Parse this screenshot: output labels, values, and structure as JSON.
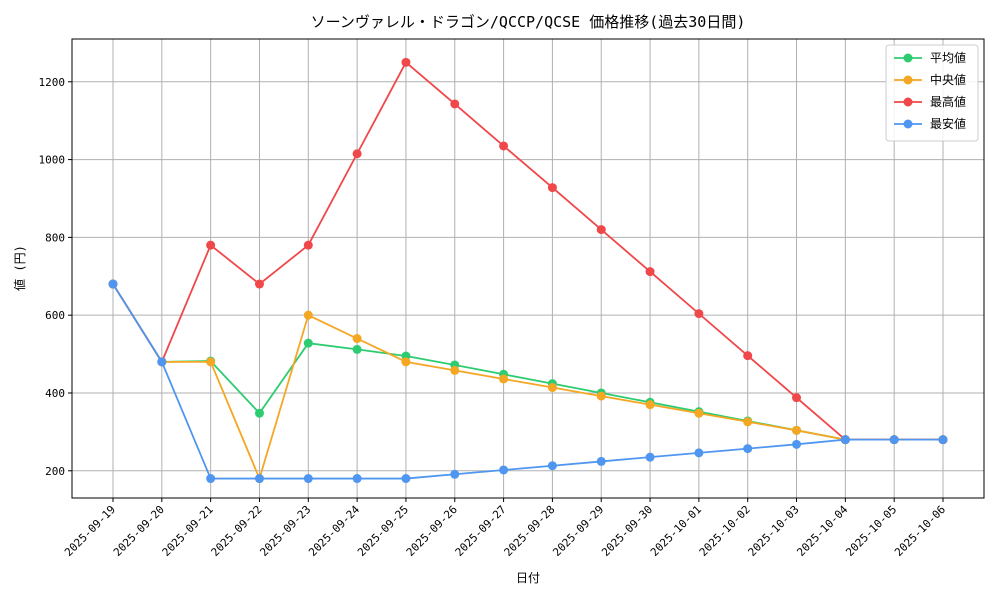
{
  "chart_data": {
    "type": "line",
    "title": "ソーンヴァレル・ドラゴン/QCCP/QCSE 価格推移(過去30日間)",
    "xlabel": "日付",
    "ylabel": "値 (円)",
    "ylim": [
      130,
      1310
    ],
    "yticks": [
      200,
      400,
      600,
      800,
      1000,
      1200
    ],
    "grid": true,
    "legend_position": "top-right",
    "categories": [
      "2025-09-19",
      "2025-09-20",
      "2025-09-21",
      "2025-09-22",
      "2025-09-23",
      "2025-09-24",
      "2025-09-25",
      "2025-09-26",
      "2025-09-27",
      "2025-09-28",
      "2025-09-29",
      "2025-09-30",
      "2025-10-01",
      "2025-10-02",
      "2025-10-03",
      "2025-10-04",
      "2025-10-05",
      "2025-10-06"
    ],
    "series": [
      {
        "name": "平均値",
        "color": "#2ecc71",
        "values": [
          680,
          480,
          482,
          348,
          528,
          512,
          495,
          472,
          448,
          424,
          400,
          376,
          352,
          328,
          304,
          280,
          280,
          280
        ]
      },
      {
        "name": "中央値",
        "color": "#f5a623",
        "values": [
          680,
          480,
          480,
          180,
          600,
          540,
          480,
          458,
          436,
          414,
          392,
          370,
          348,
          326,
          304,
          280,
          280,
          280
        ]
      },
      {
        "name": "最高値",
        "color": "#f0474a",
        "values": [
          680,
          480,
          780,
          680,
          780,
          1015,
          1250,
          1143,
          1035,
          928,
          820,
          712,
          604,
          496,
          388,
          280,
          280,
          280
        ]
      },
      {
        "name": "最安値",
        "color": "#4f96f0",
        "values": [
          680,
          480,
          180,
          180,
          180,
          180,
          180,
          191,
          202,
          213,
          224,
          235,
          246,
          257,
          268,
          280,
          280,
          280
        ]
      }
    ]
  }
}
